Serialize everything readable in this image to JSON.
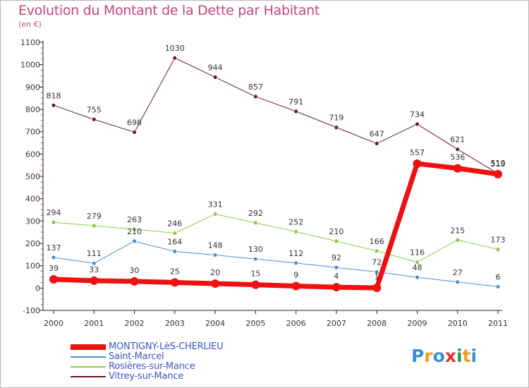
{
  "title": "Evolution du Montant de la Dette par Habitant",
  "subtitle": "(en €)",
  "chart_data": {
    "type": "line",
    "title": "Evolution du Montant de la Dette par Habitant",
    "subtitle": "(en €)",
    "x": [
      "2000",
      "2001",
      "2002",
      "2003",
      "2004",
      "2005",
      "2006",
      "2007",
      "2008",
      "2009",
      "2010",
      "2011"
    ],
    "ylim": [
      -100,
      1100
    ],
    "yticks": [
      -100,
      0,
      100,
      200,
      300,
      400,
      500,
      600,
      700,
      800,
      900,
      1000,
      1100
    ],
    "grid": false,
    "legend_position": "bottom-left",
    "series": [
      {
        "name": "MONTIGNY-LèS-CHERLIEU",
        "color": "#ee1111",
        "text_color": "#3e55c8",
        "values": [
          39,
          33,
          30,
          25,
          20,
          15,
          9,
          4,
          1,
          557,
          536,
          510
        ],
        "labels": [
          "39",
          "33",
          "30",
          "25",
          "20",
          "15",
          "9",
          "4",
          "1",
          "557",
          "536",
          "510"
        ]
      },
      {
        "name": "Saint-Marcel",
        "color": "#4a8fcf",
        "text_color": "#3e55c8",
        "values": [
          137,
          111,
          210,
          164,
          148,
          130,
          112,
          92,
          72,
          48,
          27,
          6
        ],
        "labels": [
          "137",
          "111",
          "210",
          "164",
          "148",
          "130",
          "112",
          "92",
          "72",
          "48",
          "27",
          "6"
        ]
      },
      {
        "name": "Rosières-sur-Mance",
        "color": "#88cc44",
        "text_color": "#3e55c8",
        "values": [
          294,
          279,
          263,
          246,
          331,
          292,
          252,
          210,
          166,
          116,
          215,
          173
        ],
        "labels": [
          "294",
          "279",
          "263",
          "246",
          "331",
          "292",
          "252",
          "210",
          "166",
          "116",
          "215",
          "173"
        ]
      },
      {
        "name": "Vitrey-sur-Mance",
        "color": "#6b1a2a",
        "text_color": "#3e55c8",
        "values": [
          818,
          755,
          698,
          1030,
          944,
          857,
          791,
          719,
          647,
          734,
          621,
          513
        ],
        "labels": [
          "818",
          "755",
          "698",
          "1030",
          "944",
          "857",
          "791",
          "719",
          "647",
          "734",
          "621",
          "513"
        ]
      }
    ]
  },
  "logo": {
    "letters": [
      "P",
      "r",
      "o",
      "x",
      "i",
      "t",
      "i"
    ],
    "colors": [
      "#3a8fd8",
      "#f0a020",
      "#3a8fd8",
      "#e83030",
      "#2a9a4a",
      "#f0a020",
      "#3a8fd8"
    ]
  }
}
